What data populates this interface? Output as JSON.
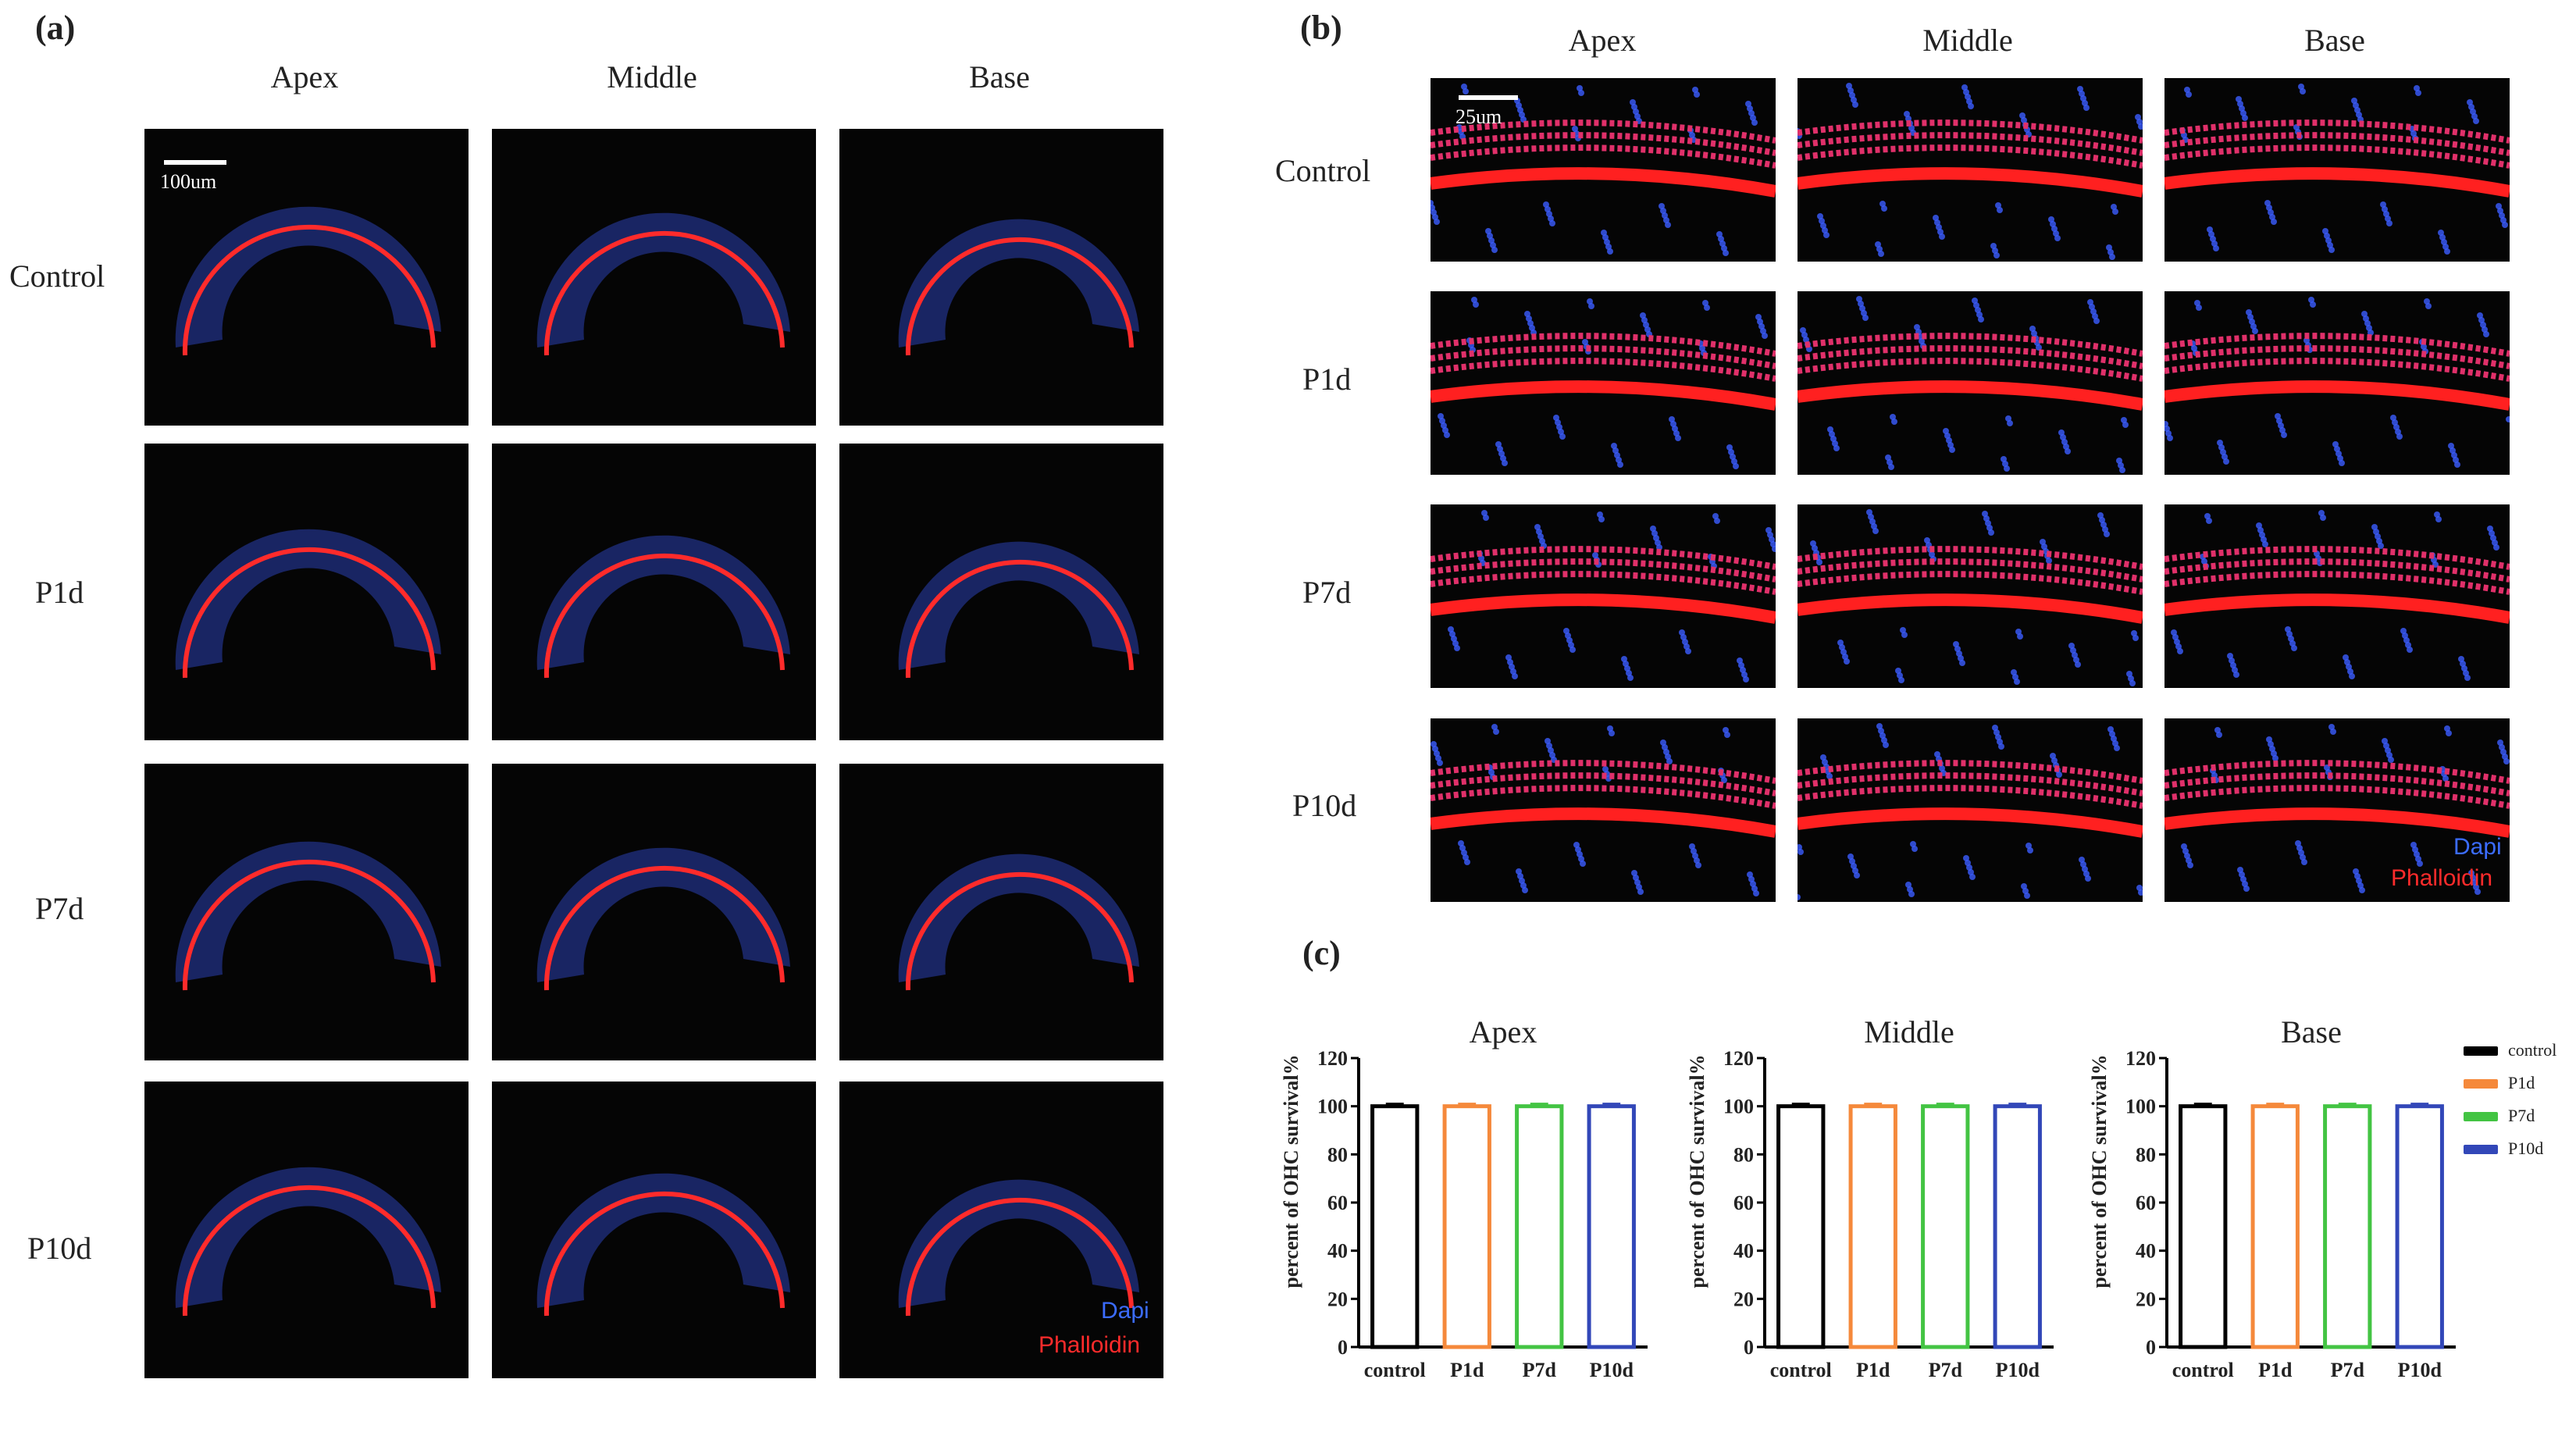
{
  "panels": {
    "a": {
      "label": "(a)",
      "columns": [
        "Apex",
        "Middle",
        "Base"
      ],
      "rows": [
        "Control",
        "P1d",
        "P7d",
        "P10d"
      ],
      "scale": "100um",
      "stain_blue": "Dapi",
      "stain_red": "Phalloidin"
    },
    "b": {
      "label": "(b)",
      "columns": [
        "Apex",
        "Middle",
        "Base"
      ],
      "rows": [
        "Control",
        "P1d",
        "P7d",
        "P10d"
      ],
      "scale": "25um",
      "stain_blue": "Dapi",
      "stain_red": "Phalloidin"
    },
    "c": {
      "label": "(c)"
    }
  },
  "colors": {
    "control": "#000000",
    "P1d": "#f5893b",
    "P7d": "#43c443",
    "P10d": "#3247b8",
    "dapi": "#3b6cff",
    "phalloidin": "#ff2b2b"
  },
  "chart_data": [
    {
      "type": "bar",
      "title": "Apex",
      "ylabel": "percent of OHC survival%",
      "categories": [
        "control",
        "P1d",
        "P7d",
        "P10d"
      ],
      "values": [
        100,
        100,
        100,
        100
      ],
      "ylim": [
        0,
        120
      ],
      "yticks": [
        "0",
        "20",
        "40",
        "60",
        "80",
        "100",
        "120"
      ]
    },
    {
      "type": "bar",
      "title": "Middle",
      "ylabel": "percent of OHC survival%",
      "categories": [
        "control",
        "P1d",
        "P7d",
        "P10d"
      ],
      "values": [
        100,
        100,
        100,
        100
      ],
      "ylim": [
        0,
        120
      ],
      "yticks": [
        "0",
        "20",
        "40",
        "60",
        "80",
        "100",
        "120"
      ]
    },
    {
      "type": "bar",
      "title": "Base",
      "ylabel": "percent of OHC survival%",
      "categories": [
        "control",
        "P1d",
        "P7d",
        "P10d"
      ],
      "values": [
        100,
        100,
        100,
        100
      ],
      "ylim": [
        0,
        120
      ],
      "yticks": [
        "0",
        "20",
        "40",
        "60",
        "80",
        "100",
        "120"
      ]
    }
  ],
  "legend": [
    "control",
    "P1d",
    "P7d",
    "P10d"
  ]
}
